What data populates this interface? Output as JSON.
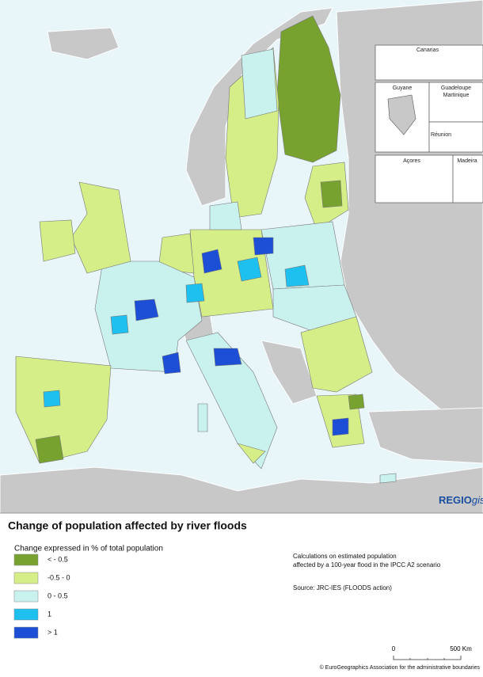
{
  "map": {
    "insets": {
      "canarias": "Canarias",
      "guyane": "Guyane",
      "guadeloupe": "Guadeloupe",
      "martinique": "Martinique",
      "reunion": "Réunion",
      "acores": "Açores",
      "madeira": "Madeira"
    }
  },
  "logo": {
    "main": "REGIO",
    "suffix": "gis"
  },
  "title": "Change of population affected by river floods",
  "legend": {
    "title": "Change expressed in % of total population",
    "items": [
      {
        "label": "< - 0.5",
        "color": "#78a22f"
      },
      {
        "label": "-0.5 - 0",
        "color": "#d6ee88"
      },
      {
        "label": "0 - 0.5",
        "color": "#c9f1ee"
      },
      {
        "label": "1",
        "color": "#1ec0ef"
      },
      {
        "label": "> 1",
        "color": "#1c4fd6"
      }
    ]
  },
  "notes": {
    "calculation": [
      "Calculations on estimated population",
      "affected by a 100-year flood in the IPCC A2 scenario"
    ],
    "source": "Source: JRC-IES (FLOODS action)"
  },
  "scale_bar": {
    "start": "0",
    "end": "500 Km"
  },
  "copyright": "© EuroGeographics Association for the administrative boundaries"
}
